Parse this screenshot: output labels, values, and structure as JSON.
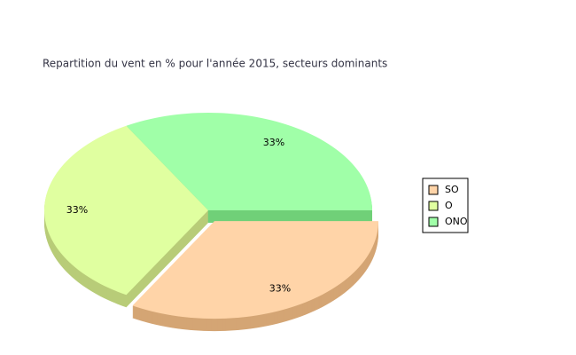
{
  "chart_data": {
    "type": "pie",
    "title": "Repartition du vent en % pour l'année 2015, secteurs dominants",
    "categories": [
      "SO",
      "O",
      "ONO"
    ],
    "values": [
      33,
      33,
      33
    ],
    "value_labels": [
      "33%",
      "33%",
      "33%"
    ],
    "colors": [
      "#ffd4a8",
      "#e0ffa0",
      "#a0ffa8"
    ],
    "side_colors": [
      "#d4a574",
      "#b8cc78",
      "#70d078"
    ]
  }
}
